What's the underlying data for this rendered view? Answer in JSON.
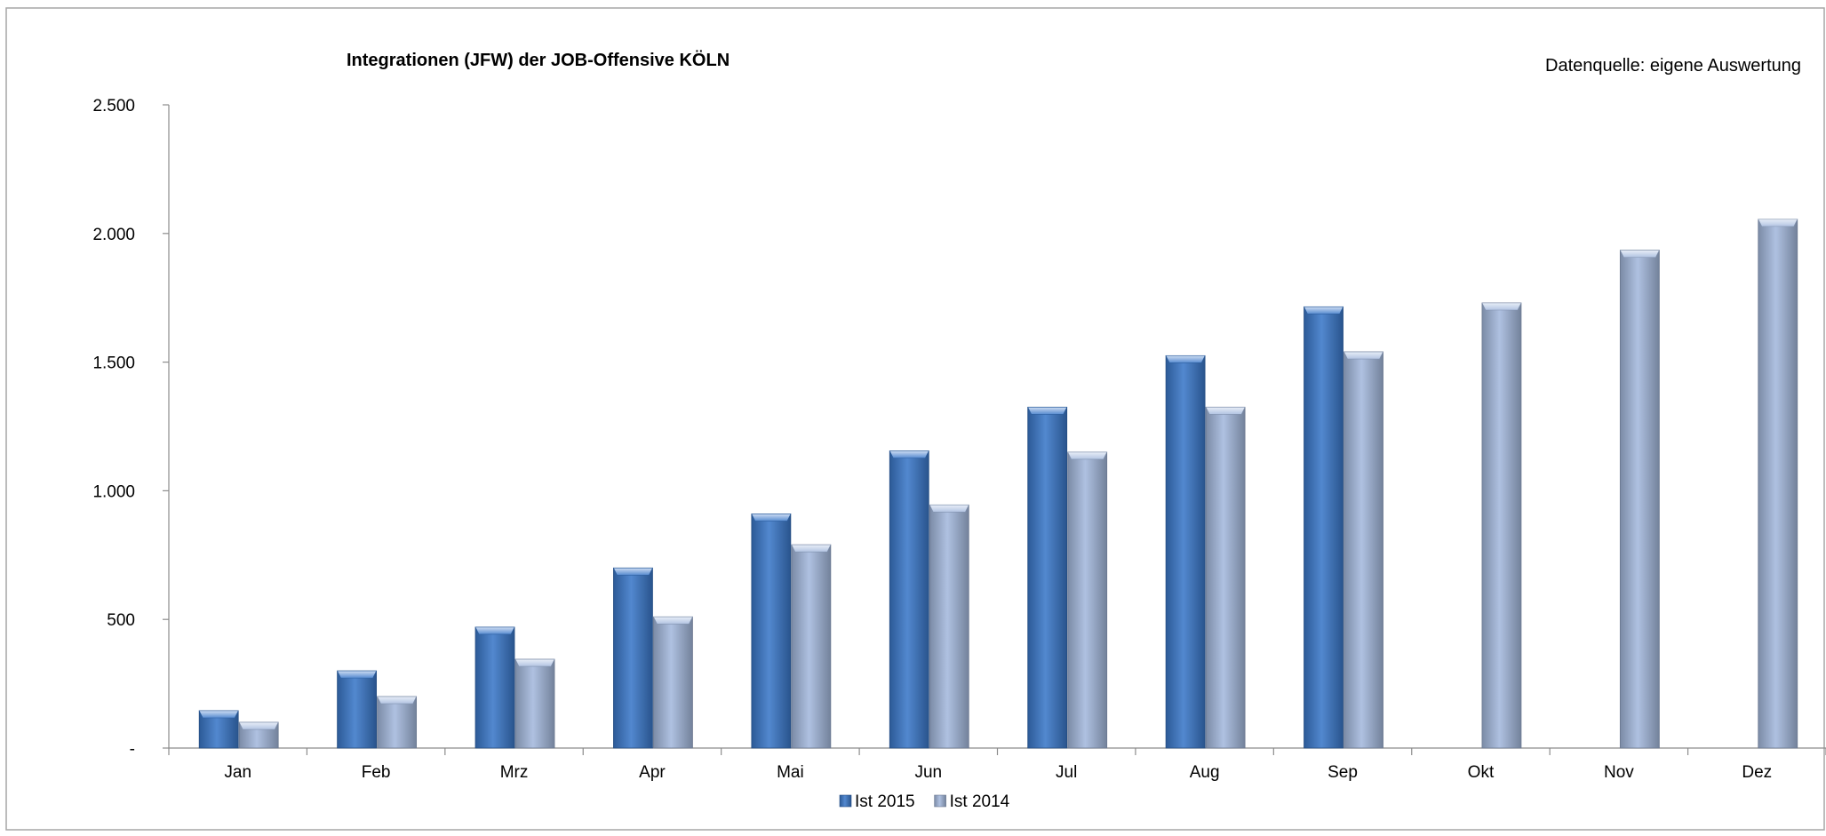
{
  "chart_data": {
    "type": "bar",
    "title": "Integrationen (JFW) der JOB-Offensive KÖLN",
    "source_note": "Datenquelle: eigene Auswertung",
    "categories": [
      "Jan",
      "Feb",
      "Mrz",
      "Apr",
      "Mai",
      "Jun",
      "Jul",
      "Aug",
      "Sep",
      "Okt",
      "Nov",
      "Dez"
    ],
    "series": [
      {
        "name": "Ist 2015",
        "color": "#3a78c9",
        "values": [
          145,
          300,
          470,
          700,
          910,
          1155,
          1325,
          1525,
          1715,
          null,
          null,
          null
        ]
      },
      {
        "name": "Ist 2014",
        "color": "#a4b9dd",
        "values": [
          100,
          200,
          345,
          510,
          790,
          945,
          1150,
          1325,
          1540,
          1730,
          1935,
          2055
        ]
      }
    ],
    "y_ticks": [
      {
        "value": 0,
        "label": "-"
      },
      {
        "value": 500,
        "label": "500"
      },
      {
        "value": 1000,
        "label": "1.000"
      },
      {
        "value": 1500,
        "label": "1.500"
      },
      {
        "value": 2000,
        "label": "2.000"
      },
      {
        "value": 2500,
        "label": "2.500"
      }
    ],
    "ylim": [
      0,
      2500
    ],
    "grid": false,
    "legend_position": "bottom",
    "xlabel": "",
    "ylabel": ""
  }
}
